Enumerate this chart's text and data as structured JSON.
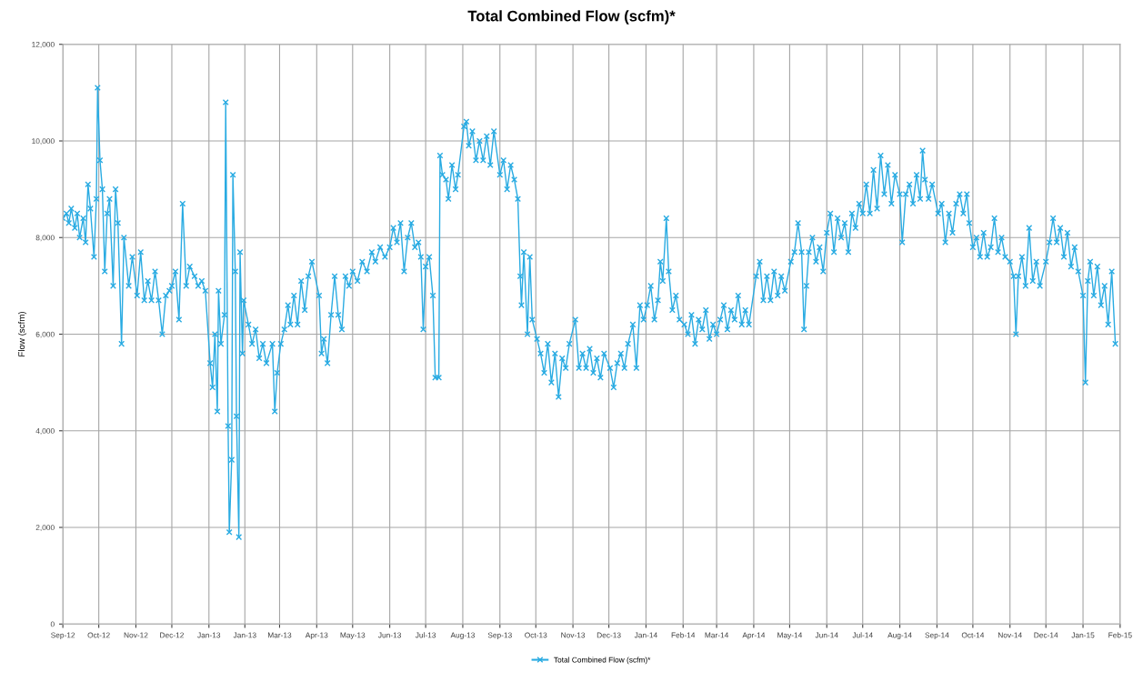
{
  "chart_data": {
    "type": "line",
    "title": "Total Combined Flow (scfm)*",
    "ylabel": "Flow (scfm)",
    "xlim": [
      "2012-09-01",
      "2015-02-01"
    ],
    "xticks": [
      {
        "value": "2012-09-01",
        "label": "Sep-12"
      },
      {
        "value": "2012-10-01",
        "label": "Oct-12"
      },
      {
        "value": "2012-11-01",
        "label": "Nov-12"
      },
      {
        "value": "2012-12-01",
        "label": "Dec-12"
      },
      {
        "value": "2013-01-01",
        "label": "Jan-13"
      },
      {
        "value": "2013-01-31",
        "label": "Jan-13"
      },
      {
        "value": "2013-03-01",
        "label": "Mar-13"
      },
      {
        "value": "2013-04-01",
        "label": "Apr-13"
      },
      {
        "value": "2013-05-01",
        "label": "May-13"
      },
      {
        "value": "2013-06-01",
        "label": "Jun-13"
      },
      {
        "value": "2013-07-01",
        "label": "Jul-13"
      },
      {
        "value": "2013-08-01",
        "label": "Aug-13"
      },
      {
        "value": "2013-09-01",
        "label": "Sep-13"
      },
      {
        "value": "2013-10-01",
        "label": "Oct-13"
      },
      {
        "value": "2013-11-01",
        "label": "Nov-13"
      },
      {
        "value": "2013-12-01",
        "label": "Dec-13"
      },
      {
        "value": "2014-01-01",
        "label": "Jan-14"
      },
      {
        "value": "2014-02-01",
        "label": "Feb-14"
      },
      {
        "value": "2014-03-01",
        "label": "Mar-14"
      },
      {
        "value": "2014-04-01",
        "label": "Apr-14"
      },
      {
        "value": "2014-05-01",
        "label": "May-14"
      },
      {
        "value": "2014-06-01",
        "label": "Jun-14"
      },
      {
        "value": "2014-07-01",
        "label": "Jul-14"
      },
      {
        "value": "2014-08-01",
        "label": "Aug-14"
      },
      {
        "value": "2014-09-01",
        "label": "Sep-14"
      },
      {
        "value": "2014-10-01",
        "label": "Oct-14"
      },
      {
        "value": "2014-11-01",
        "label": "Nov-14"
      },
      {
        "value": "2014-12-01",
        "label": "Dec-14"
      },
      {
        "value": "2015-01-01",
        "label": "Jan-15"
      },
      {
        "value": "2015-02-01",
        "label": "Feb-15"
      }
    ],
    "ylim": [
      0,
      12000
    ],
    "yticks": [
      {
        "value": 0,
        "label": "0"
      },
      {
        "value": 2000,
        "label": "2,000"
      },
      {
        "value": 4000,
        "label": "4,000"
      },
      {
        "value": 6000,
        "label": "6,000"
      },
      {
        "value": 8000,
        "label": "8,000"
      },
      {
        "value": 10000,
        "label": "10,000"
      },
      {
        "value": 12000,
        "label": "12,000"
      }
    ],
    "grid": true,
    "legend": "bottom",
    "marker": "cross",
    "line_style": "solid",
    "series": [
      {
        "name": "Total Combined Flow (scfm)*",
        "color": "#29abe2",
        "x": [
          "2012-09-01",
          "2012-09-04",
          "2012-09-06",
          "2012-09-08",
          "2012-09-11",
          "2012-09-13",
          "2012-09-15",
          "2012-09-18",
          "2012-09-20",
          "2012-09-22",
          "2012-09-24",
          "2012-09-27",
          "2012-09-29",
          "2012-09-30",
          "2012-10-02",
          "2012-10-04",
          "2012-10-06",
          "2012-10-08",
          "2012-10-10",
          "2012-10-13",
          "2012-10-15",
          "2012-10-17",
          "2012-10-20",
          "2012-10-22",
          "2012-10-26",
          "2012-10-29",
          "2012-11-02",
          "2012-11-05",
          "2012-11-08",
          "2012-11-11",
          "2012-11-14",
          "2012-11-17",
          "2012-11-20",
          "2012-11-23",
          "2012-11-26",
          "2012-11-29",
          "2012-12-01",
          "2012-12-04",
          "2012-12-07",
          "2012-12-10",
          "2012-12-13",
          "2012-12-16",
          "2012-12-20",
          "2012-12-23",
          "2012-12-26",
          "2012-12-29",
          "2013-01-02",
          "2013-01-04",
          "2013-01-06",
          "2013-01-08",
          "2013-01-09",
          "2013-01-11",
          "2013-01-14",
          "2013-01-15",
          "2013-01-17",
          "2013-01-18",
          "2013-01-20",
          "2013-01-21",
          "2013-01-23",
          "2013-01-24",
          "2013-01-26",
          "2013-01-27",
          "2013-01-29",
          "2013-01-30",
          "2013-02-03",
          "2013-02-06",
          "2013-02-09",
          "2013-02-12",
          "2013-02-15",
          "2013-02-18",
          "2013-02-23",
          "2013-02-25",
          "2013-02-27",
          "2013-03-02",
          "2013-03-05",
          "2013-03-08",
          "2013-03-10",
          "2013-03-13",
          "2013-03-16",
          "2013-03-19",
          "2013-03-22",
          "2013-03-25",
          "2013-03-28",
          "2013-04-03",
          "2013-04-05",
          "2013-04-07",
          "2013-04-10",
          "2013-04-13",
          "2013-04-16",
          "2013-04-19",
          "2013-04-22",
          "2013-04-25",
          "2013-04-28",
          "2013-05-01",
          "2013-05-05",
          "2013-05-09",
          "2013-05-13",
          "2013-05-17",
          "2013-05-20",
          "2013-05-24",
          "2013-05-28",
          "2013-06-01",
          "2013-06-04",
          "2013-06-07",
          "2013-06-10",
          "2013-06-13",
          "2013-06-16",
          "2013-06-19",
          "2013-06-22",
          "2013-06-25",
          "2013-06-27",
          "2013-06-29",
          "2013-07-01",
          "2013-07-04",
          "2013-07-07",
          "2013-07-09",
          "2013-07-12",
          "2013-07-13",
          "2013-07-15",
          "2013-07-18",
          "2013-07-20",
          "2013-07-23",
          "2013-07-26",
          "2013-07-28",
          "2013-08-02",
          "2013-08-04",
          "2013-08-06",
          "2013-08-09",
          "2013-08-12",
          "2013-08-15",
          "2013-08-18",
          "2013-08-21",
          "2013-08-24",
          "2013-08-27",
          "2013-09-01",
          "2013-09-04",
          "2013-09-07",
          "2013-09-10",
          "2013-09-13",
          "2013-09-16",
          "2013-09-18",
          "2013-09-19",
          "2013-09-21",
          "2013-09-24",
          "2013-09-26",
          "2013-09-28",
          "2013-10-02",
          "2013-10-05",
          "2013-10-08",
          "2013-10-11",
          "2013-10-14",
          "2013-10-17",
          "2013-10-20",
          "2013-10-23",
          "2013-10-26",
          "2013-10-29",
          "2013-11-03",
          "2013-11-06",
          "2013-11-09",
          "2013-11-12",
          "2013-11-15",
          "2013-11-18",
          "2013-11-21",
          "2013-11-24",
          "2013-11-27",
          "2013-12-02",
          "2013-12-05",
          "2013-12-08",
          "2013-12-11",
          "2013-12-14",
          "2013-12-17",
          "2013-12-21",
          "2013-12-24",
          "2013-12-27",
          "2013-12-30",
          "2014-01-02",
          "2014-01-05",
          "2014-01-08",
          "2014-01-11",
          "2014-01-13",
          "2014-01-15",
          "2014-01-18",
          "2014-01-20",
          "2014-01-23",
          "2014-01-26",
          "2014-01-29",
          "2014-02-02",
          "2014-02-05",
          "2014-02-08",
          "2014-02-11",
          "2014-02-14",
          "2014-02-17",
          "2014-02-20",
          "2014-02-23",
          "2014-02-26",
          "2014-03-01",
          "2014-03-04",
          "2014-03-07",
          "2014-03-10",
          "2014-03-13",
          "2014-03-16",
          "2014-03-19",
          "2014-03-22",
          "2014-03-25",
          "2014-03-28",
          "2014-04-03",
          "2014-04-06",
          "2014-04-09",
          "2014-04-12",
          "2014-04-15",
          "2014-04-18",
          "2014-04-21",
          "2014-04-24",
          "2014-04-27",
          "2014-05-02",
          "2014-05-05",
          "2014-05-08",
          "2014-05-11",
          "2014-05-13",
          "2014-05-15",
          "2014-05-17",
          "2014-05-20",
          "2014-05-23",
          "2014-05-26",
          "2014-05-29",
          "2014-06-01",
          "2014-06-04",
          "2014-06-07",
          "2014-06-10",
          "2014-06-13",
          "2014-06-16",
          "2014-06-19",
          "2014-06-22",
          "2014-06-25",
          "2014-06-28",
          "2014-07-01",
          "2014-07-04",
          "2014-07-07",
          "2014-07-10",
          "2014-07-13",
          "2014-07-16",
          "2014-07-19",
          "2014-07-22",
          "2014-07-25",
          "2014-07-28",
          "2014-08-01",
          "2014-08-03",
          "2014-08-06",
          "2014-08-09",
          "2014-08-12",
          "2014-08-15",
          "2014-08-18",
          "2014-08-20",
          "2014-08-22",
          "2014-08-25",
          "2014-08-28",
          "2014-09-02",
          "2014-09-05",
          "2014-09-08",
          "2014-09-11",
          "2014-09-14",
          "2014-09-17",
          "2014-09-20",
          "2014-09-23",
          "2014-09-26",
          "2014-09-28",
          "2014-10-01",
          "2014-10-04",
          "2014-10-07",
          "2014-10-10",
          "2014-10-13",
          "2014-10-16",
          "2014-10-19",
          "2014-10-22",
          "2014-10-25",
          "2014-10-28",
          "2014-11-01",
          "2014-11-04",
          "2014-11-06",
          "2014-11-08",
          "2014-11-11",
          "2014-11-14",
          "2014-11-17",
          "2014-11-20",
          "2014-11-23",
          "2014-11-26",
          "2014-12-01",
          "2014-12-04",
          "2014-12-07",
          "2014-12-10",
          "2014-12-13",
          "2014-12-16",
          "2014-12-19",
          "2014-12-22",
          "2014-12-25",
          "2014-12-28",
          "2015-01-01",
          "2015-01-03",
          "2015-01-05",
          "2015-01-07",
          "2015-01-10",
          "2015-01-13",
          "2015-01-16",
          "2015-01-19",
          "2015-01-22",
          "2015-01-25",
          "2015-01-28"
        ],
        "values": [
          8400,
          8500,
          8300,
          8600,
          8200,
          8500,
          8000,
          8400,
          7900,
          9100,
          8600,
          7600,
          8800,
          11100,
          9600,
          9000,
          7300,
          8500,
          8800,
          7000,
          9000,
          8300,
          5800,
          8000,
          7000,
          7600,
          6800,
          7700,
          6700,
          7100,
          6700,
          7300,
          6700,
          6000,
          6800,
          6900,
          7000,
          7300,
          6300,
          8700,
          7000,
          7400,
          7200,
          7000,
          7100,
          6900,
          5400,
          4900,
          6000,
          4400,
          6900,
          5800,
          6400,
          10800,
          4100,
          1900,
          3400,
          9300,
          7300,
          4300,
          1800,
          7700,
          5600,
          6700,
          6200,
          5800,
          6100,
          5500,
          5800,
          5400,
          5800,
          4400,
          5200,
          5800,
          6100,
          6600,
          6200,
          6800,
          6200,
          7100,
          6500,
          7200,
          7500,
          6800,
          5600,
          5900,
          5400,
          6400,
          7200,
          6400,
          6100,
          7200,
          7000,
          7300,
          7100,
          7500,
          7300,
          7700,
          7500,
          7800,
          7600,
          7800,
          8200,
          7900,
          8300,
          7300,
          8000,
          8300,
          7800,
          7900,
          7600,
          6100,
          7400,
          7600,
          6800,
          5100,
          5100,
          9700,
          9300,
          9200,
          8800,
          9500,
          9000,
          9300,
          10300,
          10400,
          9900,
          10200,
          9600,
          10000,
          9600,
          10100,
          9500,
          10200,
          9300,
          9600,
          9000,
          9500,
          9200,
          8800,
          7200,
          6600,
          7700,
          6000,
          7600,
          6300,
          5900,
          5600,
          5200,
          5800,
          5000,
          5600,
          4700,
          5500,
          5300,
          5800,
          6300,
          5300,
          5600,
          5300,
          5700,
          5200,
          5500,
          5100,
          5600,
          5300,
          4900,
          5400,
          5600,
          5300,
          5800,
          6200,
          5300,
          6600,
          6300,
          6600,
          7000,
          6300,
          6700,
          7500,
          7100,
          8400,
          7300,
          6500,
          6800,
          6300,
          6200,
          6000,
          6400,
          5800,
          6300,
          6100,
          6500,
          5900,
          6200,
          6000,
          6300,
          6600,
          6100,
          6500,
          6300,
          6800,
          6200,
          6500,
          6200,
          7200,
          7500,
          6700,
          7200,
          6700,
          7300,
          6800,
          7200,
          6900,
          7500,
          7700,
          8300,
          7700,
          6100,
          7000,
          7700,
          8000,
          7500,
          7800,
          7300,
          8100,
          8500,
          7700,
          8400,
          8000,
          8300,
          7700,
          8500,
          8200,
          8700,
          8500,
          9100,
          8500,
          9400,
          8600,
          9700,
          8900,
          9500,
          8700,
          9300,
          8900,
          7900,
          8900,
          9100,
          8700,
          9300,
          8800,
          9800,
          9200,
          8800,
          9100,
          8500,
          8700,
          7900,
          8500,
          8100,
          8700,
          8900,
          8500,
          8900,
          8300,
          7800,
          8000,
          7600,
          8100,
          7600,
          7800,
          8400,
          7700,
          8000,
          7600,
          7500,
          7200,
          6000,
          7200,
          7600,
          7000,
          8200,
          7100,
          7500,
          7000,
          7500,
          7900,
          8400,
          7900,
          8200,
          7600,
          8100,
          7400,
          7800,
          7300,
          6800,
          5000,
          7100,
          7500,
          6800,
          7400,
          6600,
          7000,
          6200,
          7300,
          5800
        ]
      }
    ]
  }
}
